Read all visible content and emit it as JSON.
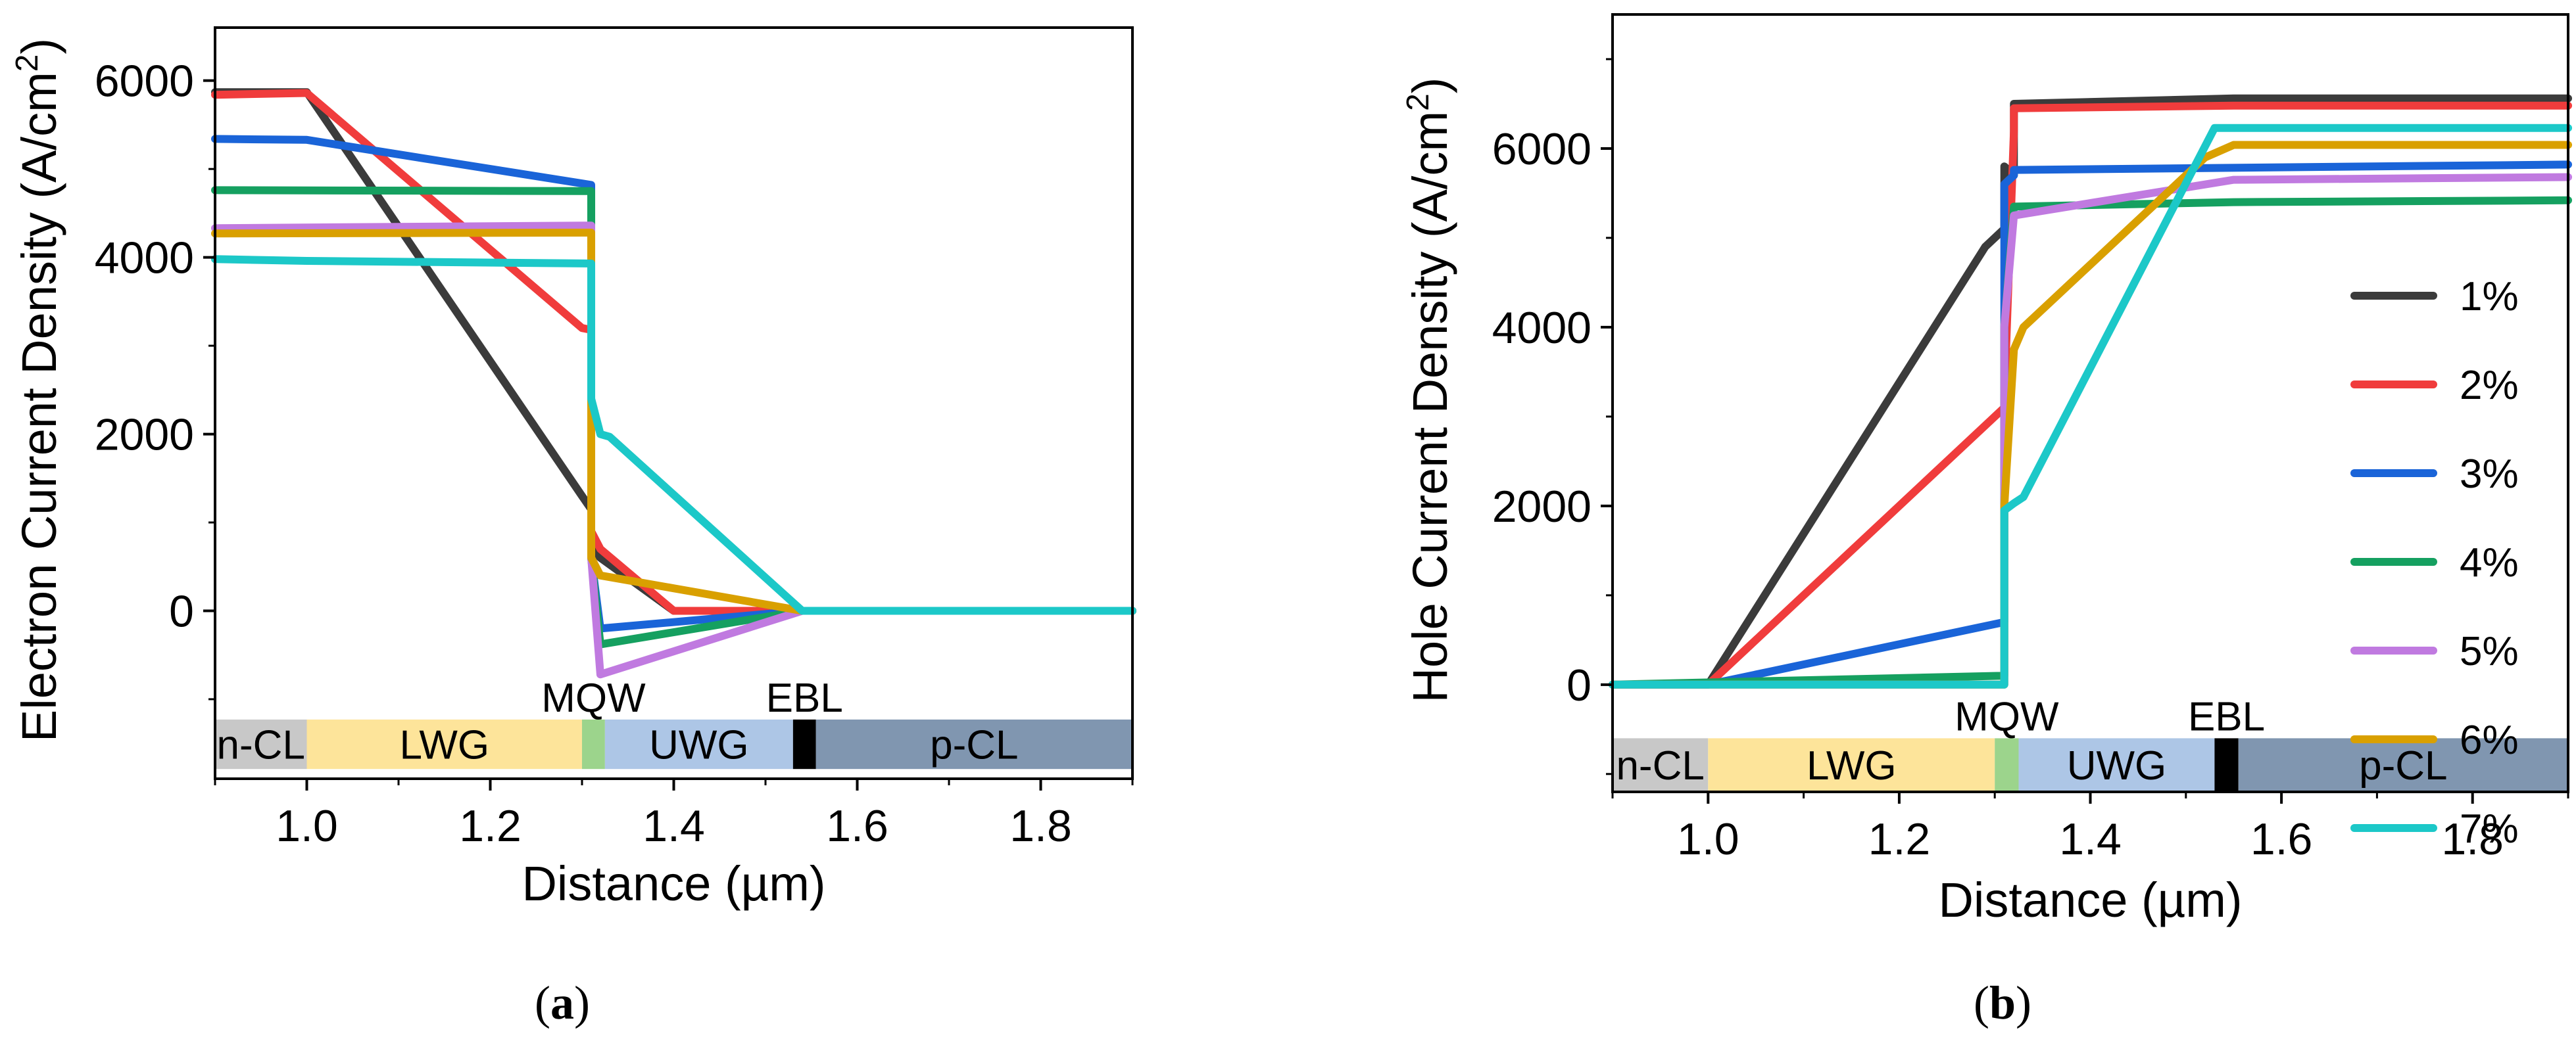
{
  "colors": {
    "1%": "#3b3b3b",
    "2%": "#f03c3c",
    "3%": "#1a64d8",
    "4%": "#15a060",
    "5%": "#c07ae0",
    "6%": "#d9a000",
    "7%": "#1cc8c8",
    "band_n-CL": "#c8c8c8",
    "band_LWG": "#fde49a",
    "band_MQW": "#9cd48c",
    "band_UWG": "#adc6e6",
    "band_EBL": "#000000",
    "band_p-CL": "#8096b0"
  },
  "captions": {
    "a": "a",
    "b": "b"
  },
  "chart_data": [
    {
      "id": "a",
      "type": "line",
      "caption": "(a)",
      "xlabel": "Distance (µm)",
      "ylabel_main": "Electron Current Density (A/cm",
      "ylabel_sup": "2",
      "ylabel_end": ")",
      "xlim": [
        0.9,
        1.9
      ],
      "ylim": [
        -1900,
        6600
      ],
      "xticks": [
        1.0,
        1.2,
        1.4,
        1.6,
        1.8
      ],
      "xtick_labels": [
        "1.0",
        "1.2",
        "1.4",
        "1.6",
        "1.8"
      ],
      "yticks": [
        0,
        2000,
        4000,
        6000
      ],
      "ytick_labels": [
        "0",
        "2000",
        "4000",
        "6000"
      ],
      "bands": [
        {
          "label": "n-CL",
          "x0": 0.9,
          "x1": 1.0
        },
        {
          "label": "LWG",
          "x0": 1.0,
          "x1": 1.3
        },
        {
          "label": "MQW",
          "x0": 1.3,
          "x1": 1.325
        },
        {
          "label": "UWG",
          "x0": 1.325,
          "x1": 1.53
        },
        {
          "label": "EBL",
          "x0": 1.53,
          "x1": 1.555
        },
        {
          "label": "p-CL",
          "x0": 1.555,
          "x1": 1.9
        }
      ],
      "band_y": [
        -1230,
        -1790
      ],
      "series": [
        {
          "name": "1%",
          "x": [
            0.9,
            1.0,
            1.3,
            1.31,
            1.31,
            1.32,
            1.4,
            1.54,
            1.9
          ],
          "y": [
            5870,
            5870,
            1300,
            1150,
            700,
            600,
            0,
            0,
            0
          ]
        },
        {
          "name": "2%",
          "x": [
            0.9,
            1.0,
            1.3,
            1.31,
            1.31,
            1.32,
            1.4,
            1.54,
            1.9
          ],
          "y": [
            5840,
            5860,
            3200,
            3180,
            900,
            700,
            0,
            0,
            0
          ]
        },
        {
          "name": "3%",
          "x": [
            0.9,
            1.0,
            1.31,
            1.31,
            1.32,
            1.54,
            1.9
          ],
          "y": [
            5340,
            5330,
            4820,
            600,
            -200,
            0,
            0
          ]
        },
        {
          "name": "4%",
          "x": [
            0.9,
            1.31,
            1.31,
            1.32,
            1.54,
            1.9
          ],
          "y": [
            4760,
            4750,
            600,
            -380,
            0,
            0
          ]
        },
        {
          "name": "5%",
          "x": [
            0.9,
            1.31,
            1.31,
            1.32,
            1.54,
            1.9
          ],
          "y": [
            4330,
            4360,
            600,
            -720,
            0,
            0
          ]
        },
        {
          "name": "6%",
          "x": [
            0.9,
            1.31,
            1.31,
            1.32,
            1.54,
            1.9
          ],
          "y": [
            4270,
            4280,
            600,
            400,
            0,
            0
          ]
        },
        {
          "name": "7%",
          "x": [
            0.9,
            1.0,
            1.31,
            1.31,
            1.32,
            1.33,
            1.54,
            1.9
          ],
          "y": [
            3980,
            3960,
            3930,
            2400,
            2000,
            1970,
            0,
            0
          ]
        }
      ]
    },
    {
      "id": "b",
      "type": "line",
      "caption": "(b)",
      "xlabel": "Distance (µm)",
      "ylabel_main": "Hole Current Density (A/cm",
      "ylabel_sup": "2",
      "ylabel_end": ")",
      "xlim": [
        0.9,
        1.9
      ],
      "ylim": [
        -1200,
        7500
      ],
      "xticks": [
        1.0,
        1.2,
        1.4,
        1.6,
        1.8
      ],
      "xtick_labels": [
        "1.0",
        "1.2",
        "1.4",
        "1.6",
        "1.8"
      ],
      "yticks": [
        0,
        2000,
        4000,
        6000
      ],
      "ytick_labels": [
        "0",
        "2000",
        "4000",
        "6000"
      ],
      "bands": [
        {
          "label": "n-CL",
          "x0": 0.9,
          "x1": 1.0
        },
        {
          "label": "LWG",
          "x0": 1.0,
          "x1": 1.3
        },
        {
          "label": "MQW",
          "x0": 1.3,
          "x1": 1.325
        },
        {
          "label": "UWG",
          "x0": 1.325,
          "x1": 1.53
        },
        {
          "label": "EBL",
          "x0": 1.53,
          "x1": 1.555
        },
        {
          "label": "p-CL",
          "x0": 1.555,
          "x1": 1.9
        }
      ],
      "band_y": [
        -600,
        -1200
      ],
      "legend": [
        "1%",
        "2%",
        "3%",
        "4%",
        "5%",
        "6%",
        "7%"
      ],
      "legend_position": "right-center",
      "series": [
        {
          "name": "1%",
          "x": [
            0.9,
            1.0,
            1.29,
            1.31,
            1.31,
            1.32,
            1.32,
            1.55,
            1.9
          ],
          "y": [
            0,
            0,
            4900,
            5100,
            5800,
            5700,
            6500,
            6560,
            6560
          ]
        },
        {
          "name": "2%",
          "x": [
            0.9,
            1.0,
            1.31,
            1.31,
            1.32,
            1.32,
            1.55,
            1.9
          ],
          "y": [
            0,
            0,
            3100,
            3200,
            6200,
            6450,
            6480,
            6480
          ]
        },
        {
          "name": "3%",
          "x": [
            0.9,
            1.0,
            1.31,
            1.31,
            1.32,
            1.32,
            1.9
          ],
          "y": [
            0,
            0,
            700,
            5600,
            5700,
            5760,
            5820
          ]
        },
        {
          "name": "4%",
          "x": [
            0.9,
            1.31,
            1.31,
            1.32,
            1.55,
            1.9
          ],
          "y": [
            0,
            100,
            4000,
            5350,
            5400,
            5420
          ]
        },
        {
          "name": "5%",
          "x": [
            0.9,
            1.31,
            1.31,
            1.32,
            1.55,
            1.9
          ],
          "y": [
            0,
            0,
            4000,
            5250,
            5650,
            5680
          ]
        },
        {
          "name": "6%",
          "x": [
            0.9,
            1.31,
            1.31,
            1.32,
            1.33,
            1.52,
            1.55,
            1.9
          ],
          "y": [
            0,
            0,
            2000,
            3750,
            4000,
            5900,
            6040,
            6040
          ]
        },
        {
          "name": "7%",
          "x": [
            0.9,
            1.31,
            1.31,
            1.32,
            1.33,
            1.53,
            1.9
          ],
          "y": [
            0,
            0,
            1950,
            2030,
            2100,
            6230,
            6230
          ]
        }
      ]
    }
  ]
}
